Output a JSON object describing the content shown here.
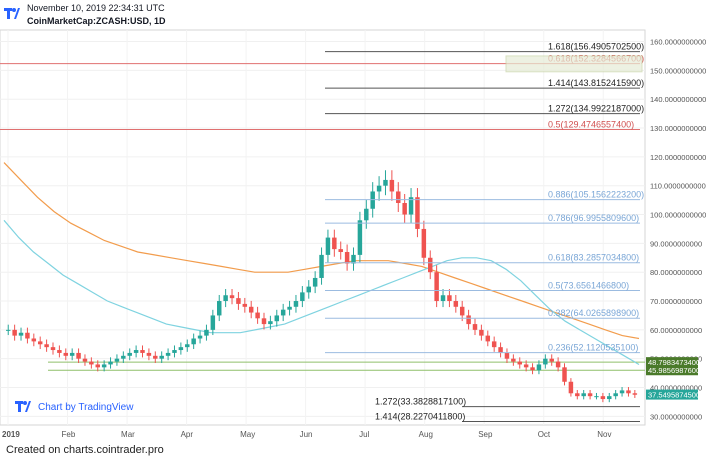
{
  "header": {
    "date": "November 10, 2019 22:34:31 UTC",
    "symbol": "CoinMarketCap:ZCASH:USD, 1D"
  },
  "watermark": "Chart by TradingView",
  "footer": "Created on charts.cointrader.pro",
  "chart_data": {
    "type": "candlestick",
    "x_ticks": [
      "2019",
      "Feb",
      "Mar",
      "Apr",
      "May",
      "Jun",
      "Jul",
      "Aug",
      "Sep",
      "Oct",
      "Nov"
    ],
    "y_ticks": [
      "160.0000000000",
      "150.0000000000",
      "140.0000000000",
      "130.0000000000",
      "120.0000000000",
      "110.0000000000",
      "100.0000000000",
      "90.0000000000",
      "80.0000000000",
      "70.0000000000",
      "60.0000000000",
      "50.0000000000",
      "40.0000000000",
      "30.0000000000"
    ],
    "ylim": [
      27,
      164
    ],
    "fib_levels": [
      {
        "label": "1.618(156.4905702500)",
        "value": 156.49,
        "color": "#555555",
        "extent": "right"
      },
      {
        "label": "0.618(152.3284566700)",
        "value": 152.33,
        "color": "#e07070",
        "extent": "full"
      },
      {
        "label": "1.414(143.8152415900)",
        "value": 143.82,
        "color": "#555555",
        "extent": "right"
      },
      {
        "label": "1.272(134.9922187000)",
        "value": 134.99,
        "color": "#555555",
        "extent": "right"
      },
      {
        "label": "0.5(129.4746557400)",
        "value": 129.47,
        "color": "#e07070",
        "extent": "full"
      },
      {
        "label": "0.886(105.1562223200)",
        "value": 105.16,
        "color": "#9bbbe0",
        "extent": "right"
      },
      {
        "label": "0.786(96.9955809600)",
        "value": 97.0,
        "color": "#9bbbe0",
        "extent": "right"
      },
      {
        "label": "0.618(83.2857034800)",
        "value": 83.29,
        "color": "#9bbbe0",
        "extent": "right"
      },
      {
        "label": "0.5(73.6561466800)",
        "value": 73.66,
        "color": "#9bbbe0",
        "extent": "right"
      },
      {
        "label": "0.382(64.0265898900)",
        "value": 64.03,
        "color": "#9bbbe0",
        "extent": "right"
      },
      {
        "label": "0.236(52.1120535100)",
        "value": 52.11,
        "color": "#9bbbe0",
        "extent": "right"
      },
      {
        "label": "1.272(33.3828817100)",
        "value": 33.38,
        "color": "#555555",
        "extent": "mid"
      },
      {
        "label": "1.414(28.2270411800)",
        "value": 28.23,
        "color": "#555555",
        "extent": "mid"
      }
    ],
    "support_lines": [
      48.8,
      46.0
    ],
    "price_badges": [
      {
        "label": "48.7983473400",
        "value": 48.8,
        "color": "#4a7a2a"
      },
      {
        "label": "45.9856987600",
        "value": 45.99,
        "color": "#4a7a2a"
      },
      {
        "label": "37.5495874500",
        "value": 37.55,
        "color": "#26a69a"
      }
    ],
    "closes": [
      60,
      58,
      59,
      57,
      56,
      55,
      54,
      53,
      52,
      51,
      52,
      50,
      49,
      48,
      47,
      48,
      49,
      50,
      51,
      52,
      53,
      52,
      51,
      50,
      51,
      52,
      53,
      54,
      55,
      57,
      58,
      60,
      65,
      70,
      72,
      71,
      69,
      68,
      66,
      64,
      62,
      63,
      65,
      67,
      68,
      70,
      73,
      75,
      78,
      86,
      92,
      88,
      87,
      83,
      86,
      98,
      102,
      108,
      110,
      112,
      108,
      104,
      100,
      106,
      95,
      85,
      80,
      70,
      72,
      70,
      68,
      65,
      62,
      60,
      58,
      56,
      54,
      52,
      50,
      49,
      48,
      47,
      46,
      48,
      50,
      49,
      47,
      42,
      38,
      37,
      38,
      37,
      37,
      36,
      37,
      38,
      39,
      38,
      37.5
    ],
    "ma_short": [
      98,
      92,
      87,
      83,
      79,
      76,
      73,
      70,
      68,
      66,
      64,
      62,
      61,
      60,
      59,
      59,
      59,
      60,
      61,
      62,
      64,
      66,
      68,
      70,
      72,
      74,
      76,
      78,
      80,
      82,
      84,
      85,
      85,
      84,
      81,
      77,
      72,
      67,
      63,
      60,
      57,
      54,
      51,
      48
    ],
    "ma_long": [
      118,
      112,
      106,
      101,
      97,
      94,
      91,
      89,
      87,
      86,
      85,
      84,
      83,
      82,
      81,
      80,
      80,
      80,
      81,
      82,
      83,
      84,
      84,
      84,
      83,
      82,
      80,
      78,
      76,
      74,
      72,
      70,
      68,
      66,
      64,
      62,
      60,
      58,
      57
    ]
  }
}
